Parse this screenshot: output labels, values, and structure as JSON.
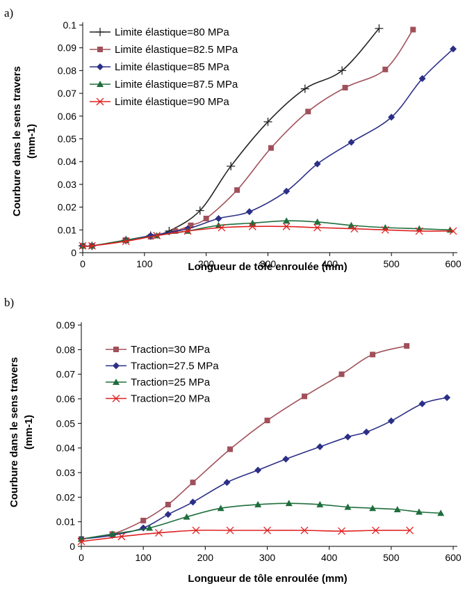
{
  "chart_data": [
    {
      "panel_label": "a)",
      "type": "line",
      "xlabel": "Longueur de tôle enroulée (mm)",
      "ylabel_line1": "Courbure dans le sens travers",
      "ylabel_line2": "(mm-1)",
      "xlim": [
        0,
        600
      ],
      "ylim": [
        0,
        0.1
      ],
      "xticks": [
        "0",
        "100",
        "200",
        "300",
        "400",
        "500",
        "600"
      ],
      "yticks": [
        "0",
        "0.01",
        "0.02",
        "0.03",
        "0.04",
        "0.05",
        "0.06",
        "0.07",
        "0.08",
        "0.09",
        "0.1"
      ],
      "legend_position": "top-left",
      "series": [
        {
          "name": "Limite élastique=80 MPa",
          "color": "#222222",
          "marker": "plus",
          "points": [
            [
              0,
              0.003
            ],
            [
              15,
              0.003
            ],
            [
              70,
              0.0055
            ],
            [
              110,
              0.0075
            ],
            [
              140,
              0.0095
            ],
            [
              190,
              0.0185
            ],
            [
              240,
              0.038
            ],
            [
              300,
              0.0575
            ],
            [
              360,
              0.072
            ],
            [
              420,
              0.08
            ],
            [
              480,
              0.0985
            ]
          ]
        },
        {
          "name": "Limite élastique=82.5 MPa",
          "color": "#A0505A",
          "marker": "square",
          "points": [
            [
              0,
              0.003
            ],
            [
              15,
              0.003
            ],
            [
              70,
              0.0055
            ],
            [
              110,
              0.007
            ],
            [
              150,
              0.0095
            ],
            [
              175,
              0.012
            ],
            [
              200,
              0.015
            ],
            [
              250,
              0.0275
            ],
            [
              305,
              0.046
            ],
            [
              365,
              0.062
            ],
            [
              425,
              0.0725
            ],
            [
              490,
              0.0805
            ],
            [
              535,
              0.098
            ]
          ]
        },
        {
          "name": "Limite élastique=85 MPa",
          "color": "#2B2F86",
          "marker": "diamond",
          "points": [
            [
              0,
              0.003
            ],
            [
              15,
              0.003
            ],
            [
              70,
              0.0055
            ],
            [
              110,
              0.0075
            ],
            [
              170,
              0.0105
            ],
            [
              220,
              0.015
            ],
            [
              270,
              0.018
            ],
            [
              330,
              0.027
            ],
            [
              380,
              0.039
            ],
            [
              435,
              0.0485
            ],
            [
              500,
              0.0595
            ],
            [
              550,
              0.0765
            ],
            [
              600,
              0.0895
            ]
          ]
        },
        {
          "name": "Limite élastique=87.5 MPa",
          "color": "#1E6E3C",
          "marker": "triangle",
          "points": [
            [
              0,
              0.003
            ],
            [
              15,
              0.003
            ],
            [
              70,
              0.0055
            ],
            [
              120,
              0.0075
            ],
            [
              170,
              0.0095
            ],
            [
              220,
              0.012
            ],
            [
              275,
              0.013
            ],
            [
              330,
              0.014
            ],
            [
              380,
              0.0135
            ],
            [
              435,
              0.012
            ],
            [
              490,
              0.011
            ],
            [
              545,
              0.0105
            ],
            [
              595,
              0.01
            ]
          ]
        },
        {
          "name": "Limite élastique=90 MPa",
          "color": "#E02020",
          "marker": "x",
          "points": [
            [
              0,
              0.003
            ],
            [
              15,
              0.003
            ],
            [
              70,
              0.005
            ],
            [
              120,
              0.0075
            ],
            [
              170,
              0.0095
            ],
            [
              225,
              0.011
            ],
            [
              275,
              0.0115
            ],
            [
              330,
              0.0115
            ],
            [
              380,
              0.011
            ],
            [
              440,
              0.0105
            ],
            [
              490,
              0.01
            ],
            [
              545,
              0.0095
            ],
            [
              600,
              0.0095
            ]
          ]
        }
      ]
    },
    {
      "panel_label": "b)",
      "type": "line",
      "xlabel": "Longueur de tôle enroulée (mm)",
      "ylabel_line1": "Courbure dans le sens travers",
      "ylabel_line2": "(mm-1)",
      "xlim": [
        0,
        600
      ],
      "ylim": [
        0,
        0.09
      ],
      "xticks": [
        "0",
        "100",
        "200",
        "300",
        "400",
        "500",
        "600"
      ],
      "yticks": [
        "0",
        "0.01",
        "0.02",
        "0.03",
        "0.04",
        "0.05",
        "0.06",
        "0.07",
        "0.08",
        "0.09"
      ],
      "legend_position": "top-left",
      "series": [
        {
          "name": "Traction=30 MPa",
          "color": "#A0505A",
          "marker": "square",
          "points": [
            [
              0,
              0.003
            ],
            [
              50,
              0.005
            ],
            [
              100,
              0.0105
            ],
            [
              140,
              0.017
            ],
            [
              180,
              0.026
            ],
            [
              240,
              0.0395
            ],
            [
              300,
              0.0512
            ],
            [
              360,
              0.061
            ],
            [
              420,
              0.07
            ],
            [
              470,
              0.078
            ],
            [
              525,
              0.0815
            ]
          ]
        },
        {
          "name": "Traction=27.5 MPa",
          "color": "#2B2F86",
          "marker": "diamond",
          "points": [
            [
              0,
              0.003
            ],
            [
              50,
              0.0045
            ],
            [
              100,
              0.0075
            ],
            [
              140,
              0.013
            ],
            [
              180,
              0.018
            ],
            [
              235,
              0.026
            ],
            [
              285,
              0.031
            ],
            [
              330,
              0.0355
            ],
            [
              385,
              0.0405
            ],
            [
              430,
              0.0445
            ],
            [
              460,
              0.0465
            ],
            [
              500,
              0.051
            ],
            [
              550,
              0.058
            ],
            [
              590,
              0.0605
            ]
          ]
        },
        {
          "name": "Traction=25 MPa",
          "color": "#1E6E3C",
          "marker": "triangle",
          "points": [
            [
              0,
              0.003
            ],
            [
              50,
              0.005
            ],
            [
              110,
              0.0075
            ],
            [
              170,
              0.012
            ],
            [
              225,
              0.0155
            ],
            [
              285,
              0.017
            ],
            [
              335,
              0.0175
            ],
            [
              385,
              0.017
            ],
            [
              430,
              0.016
            ],
            [
              470,
              0.0155
            ],
            [
              510,
              0.015
            ],
            [
              545,
              0.014
            ],
            [
              580,
              0.0135
            ]
          ]
        },
        {
          "name": "Traction=20 MPa",
          "color": "#E02020",
          "marker": "x",
          "points": [
            [
              0,
              0.002
            ],
            [
              65,
              0.004
            ],
            [
              125,
              0.0055
            ],
            [
              185,
              0.0065
            ],
            [
              240,
              0.0065
            ],
            [
              300,
              0.0065
            ],
            [
              360,
              0.0065
            ],
            [
              420,
              0.0062
            ],
            [
              475,
              0.0065
            ],
            [
              530,
              0.0065
            ]
          ]
        }
      ]
    }
  ]
}
